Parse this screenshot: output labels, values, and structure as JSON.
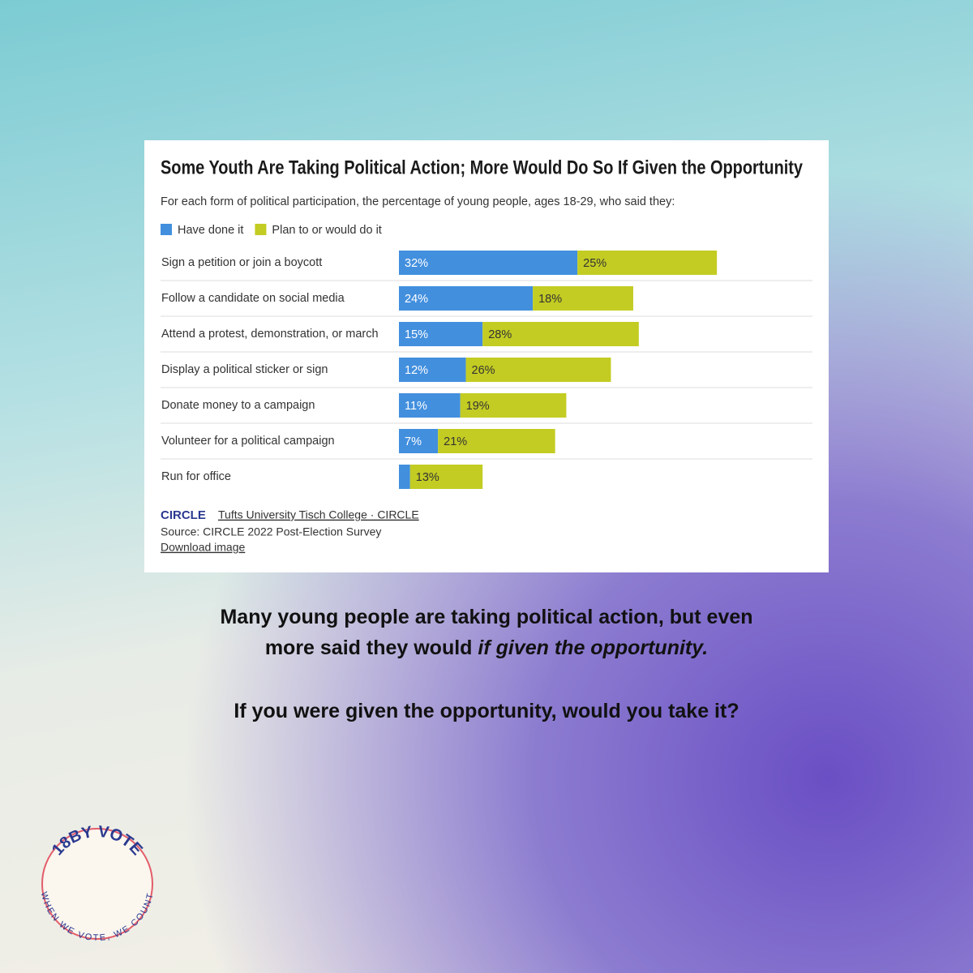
{
  "chart_data": {
    "type": "stacked-bar",
    "title": "Some Youth Are Taking Political Action; More Would Do So If Given the Opportunity",
    "subtitle": "For each form of political participation, the percentage of young people, ages 18-29, who said they:",
    "categories": [
      "Sign a petition or join a boycott",
      "Follow a candidate on social media",
      "Attend a protest, demonstration, or march",
      "Display a political sticker or sign",
      "Donate money to a campaign",
      "Volunteer for a political campaign",
      "Run for office"
    ],
    "series": [
      {
        "name": "Have done it",
        "color": "#428fde",
        "values": [
          32,
          24,
          15,
          12,
          11,
          7,
          2
        ],
        "value_labels": [
          "32%",
          "24%",
          "15%",
          "12%",
          "11%",
          "7%",
          null
        ]
      },
      {
        "name": "Plan to or would do it",
        "color": "#c3cc22",
        "values": [
          25,
          18,
          28,
          26,
          19,
          21,
          13
        ],
        "value_labels": [
          "25%",
          "18%",
          "28%",
          "26%",
          "19%",
          "21%",
          "13%"
        ]
      }
    ],
    "xlim": [
      0,
      75
    ],
    "grid": true
  },
  "credit": {
    "logo": "CIRCLE",
    "org": "Tufts University Tisch College · CIRCLE",
    "source": "Source: CIRCLE 2022 Post-Election Survey",
    "link": "Download image"
  },
  "caption": {
    "line1": "Many young people are taking political action, but even",
    "line2": "more said they would ",
    "emphasis": "if given the opportunity.",
    "question": "If you were given the opportunity, would you take it?"
  },
  "badge": {
    "top": "18BY VOTE",
    "bottom": "WHEN WE VOTE, WE COUNT"
  }
}
